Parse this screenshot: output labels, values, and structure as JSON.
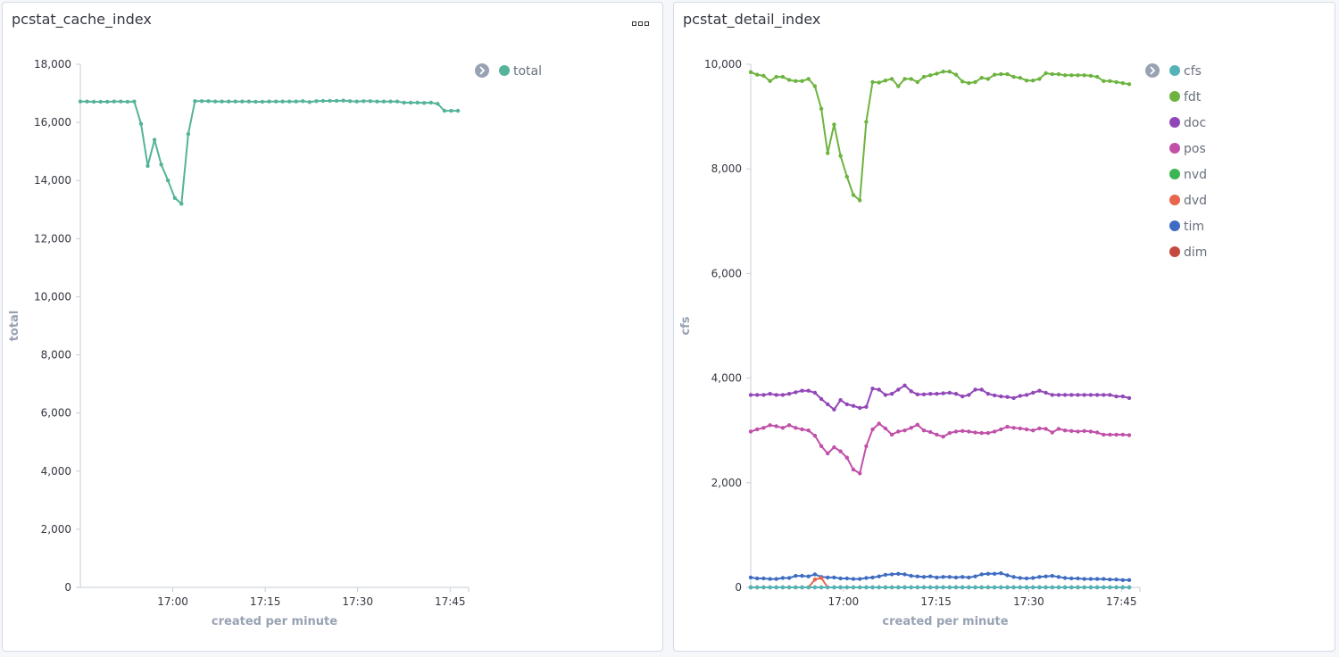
{
  "panels": [
    {
      "title": "pcstat_cache_index"
    },
    {
      "title": "pcstat_detail_index"
    }
  ],
  "chart_data": [
    {
      "type": "line",
      "title": "pcstat_cache_index",
      "xlabel": "created per minute",
      "ylabel": "total",
      "x_ticks": [
        "17:00",
        "17:15",
        "17:30",
        "17:45"
      ],
      "y_ticks": [
        "0",
        "2,000",
        "4,000",
        "6,000",
        "8,000",
        "10,000",
        "12,000",
        "14,000",
        "16,000",
        "18,000"
      ],
      "ylim": [
        0,
        18000
      ],
      "legend_position": "top-right",
      "series": [
        {
          "name": "total",
          "color": "#54b399",
          "values": [
            16720,
            16720,
            16710,
            16710,
            16710,
            16720,
            16720,
            16710,
            16720,
            15950,
            14500,
            15400,
            14550,
            14000,
            13400,
            13200,
            15600,
            16730,
            16730,
            16730,
            16720,
            16720,
            16720,
            16720,
            16720,
            16720,
            16710,
            16710,
            16720,
            16720,
            16720,
            16720,
            16720,
            16730,
            16700,
            16730,
            16740,
            16740,
            16740,
            16750,
            16730,
            16720,
            16730,
            16730,
            16720,
            16720,
            16720,
            16720,
            16680,
            16680,
            16680,
            16670,
            16680,
            16640,
            16400,
            16400,
            16400
          ]
        }
      ]
    },
    {
      "type": "line",
      "title": "pcstat_detail_index",
      "xlabel": "created per minute",
      "ylabel": "cfs",
      "x_ticks": [
        "17:00",
        "17:15",
        "17:30",
        "17:45"
      ],
      "y_ticks": [
        "0",
        "2,000",
        "4,000",
        "6,000",
        "8,000",
        "10,000"
      ],
      "ylim": [
        0,
        10000
      ],
      "legend_position": "top-right",
      "series": [
        {
          "name": "cfs",
          "color": "#54b3b8",
          "values": [
            0,
            0,
            0,
            0,
            0,
            0,
            0,
            0,
            0,
            0,
            0,
            0,
            0,
            0,
            0,
            0,
            0,
            0,
            0,
            0,
            0,
            0,
            0,
            0,
            0,
            0,
            0,
            0,
            0,
            0,
            0,
            0,
            0,
            0,
            0,
            0,
            0,
            0,
            0,
            0,
            0,
            0,
            0,
            0,
            0,
            0,
            0,
            0,
            0,
            0,
            0,
            0,
            0,
            0,
            0,
            0,
            0,
            0,
            0,
            0
          ]
        },
        {
          "name": "fdt",
          "color": "#6db33f",
          "values": [
            9850,
            9800,
            9780,
            9680,
            9760,
            9760,
            9700,
            9680,
            9680,
            9720,
            9580,
            9150,
            8300,
            8850,
            8250,
            7850,
            7500,
            7400,
            8900,
            9660,
            9650,
            9690,
            9720,
            9580,
            9720,
            9720,
            9660,
            9760,
            9790,
            9820,
            9860,
            9860,
            9800,
            9670,
            9640,
            9660,
            9740,
            9720,
            9800,
            9810,
            9810,
            9760,
            9740,
            9690,
            9690,
            9720,
            9830,
            9810,
            9810,
            9790,
            9790,
            9790,
            9790,
            9780,
            9760,
            9680,
            9680,
            9660,
            9640,
            9620
          ]
        },
        {
          "name": "doc",
          "color": "#9247b8",
          "values": [
            3680,
            3680,
            3680,
            3700,
            3680,
            3680,
            3700,
            3730,
            3760,
            3760,
            3720,
            3600,
            3500,
            3400,
            3580,
            3500,
            3470,
            3430,
            3450,
            3800,
            3780,
            3680,
            3700,
            3780,
            3860,
            3750,
            3690,
            3690,
            3700,
            3700,
            3710,
            3720,
            3700,
            3650,
            3680,
            3780,
            3780,
            3700,
            3670,
            3650,
            3640,
            3620,
            3660,
            3680,
            3720,
            3760,
            3720,
            3680,
            3680,
            3680,
            3680,
            3680,
            3680,
            3680,
            3680,
            3680,
            3680,
            3650,
            3650,
            3620
          ]
        },
        {
          "name": "pos",
          "color": "#c050a8",
          "values": [
            2980,
            3020,
            3050,
            3100,
            3080,
            3050,
            3100,
            3050,
            3020,
            3000,
            2900,
            2700,
            2560,
            2680,
            2600,
            2480,
            2250,
            2180,
            2700,
            3020,
            3130,
            3040,
            2920,
            2980,
            3000,
            3050,
            3110,
            3000,
            2970,
            2920,
            2880,
            2950,
            2980,
            2990,
            2980,
            2960,
            2950,
            2950,
            2980,
            3020,
            3070,
            3050,
            3040,
            3020,
            3000,
            3040,
            3030,
            2960,
            3030,
            3000,
            2990,
            2980,
            2990,
            2980,
            2960,
            2920,
            2920,
            2920,
            2920,
            2910
          ]
        },
        {
          "name": "nvd",
          "color": "#3cb554",
          "values": [
            0,
            0,
            0,
            0,
            0,
            0,
            0,
            0,
            0,
            0,
            0,
            0,
            0,
            0,
            0,
            0,
            0,
            0,
            0,
            0,
            0,
            0,
            0,
            0,
            0,
            0,
            0,
            0,
            0,
            0,
            0,
            0,
            0,
            0,
            0,
            0,
            0,
            0,
            0,
            0,
            0,
            0,
            0,
            0,
            0,
            0,
            0,
            0,
            0,
            0,
            0,
            0,
            0,
            0,
            0,
            0,
            0,
            0,
            0,
            0
          ]
        },
        {
          "name": "dvd",
          "color": "#e7664c",
          "values": [
            0,
            0,
            0,
            0,
            0,
            0,
            0,
            0,
            0,
            0,
            150,
            180,
            0,
            0,
            0,
            0,
            0,
            0,
            0,
            0,
            0,
            0,
            0,
            0,
            0,
            0,
            0,
            0,
            0,
            0,
            0,
            0,
            0,
            0,
            0,
            0,
            0,
            0,
            0,
            0,
            0,
            0,
            0,
            0,
            0,
            0,
            0,
            0,
            0,
            0,
            0,
            0,
            0,
            0,
            0,
            0,
            0,
            0,
            0,
            0
          ]
        },
        {
          "name": "tim",
          "color": "#3f6cc2",
          "values": [
            190,
            170,
            170,
            160,
            160,
            180,
            180,
            220,
            220,
            210,
            250,
            200,
            190,
            190,
            170,
            170,
            160,
            160,
            180,
            190,
            210,
            240,
            250,
            260,
            250,
            220,
            210,
            200,
            210,
            190,
            200,
            200,
            190,
            200,
            190,
            210,
            250,
            260,
            260,
            270,
            230,
            200,
            180,
            170,
            180,
            200,
            210,
            220,
            200,
            180,
            170,
            170,
            160,
            160,
            160,
            160,
            150,
            150,
            140,
            140
          ]
        },
        {
          "name": "dim",
          "color": "#c44a3d",
          "values": [
            0,
            0,
            0,
            0,
            0,
            0,
            0,
            0,
            0,
            0,
            0,
            0,
            0,
            0,
            0,
            0,
            0,
            0,
            0,
            0,
            0,
            0,
            0,
            0,
            0,
            0,
            0,
            0,
            0,
            0,
            0,
            0,
            0,
            0,
            0,
            0,
            0,
            0,
            0,
            0,
            0,
            0,
            0,
            0,
            0,
            0,
            0,
            0,
            0,
            0,
            0,
            0,
            0,
            0,
            0,
            0,
            0,
            0,
            0,
            0
          ]
        }
      ]
    }
  ]
}
